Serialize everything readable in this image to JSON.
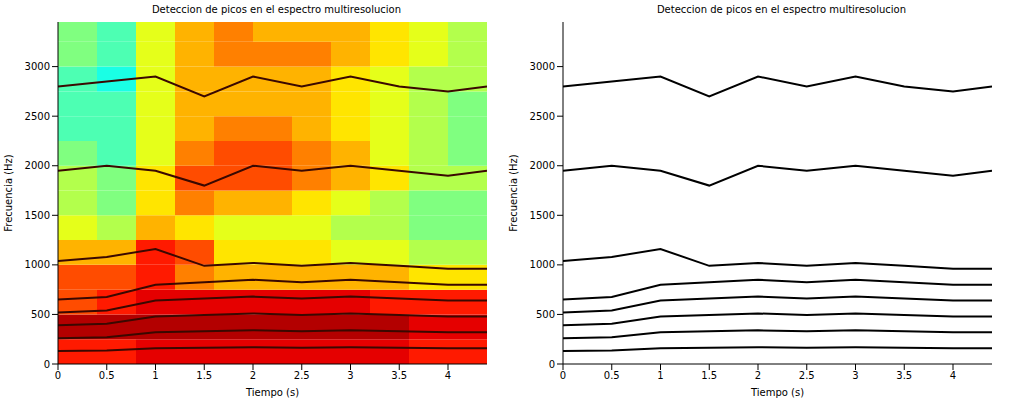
{
  "chart_data": [
    {
      "type": "heatmap",
      "title": "Deteccion de picos en el espectro multiresolucion",
      "xlabel": "Tiempo (s)",
      "ylabel": "Frecuencia (Hz)",
      "xlim": [
        0,
        4.4
      ],
      "ylim": [
        0,
        3450
      ],
      "xticks": [
        0,
        0.5,
        1,
        1.5,
        2,
        2.5,
        3,
        3.5,
        4
      ],
      "yticks": [
        0,
        500,
        1000,
        1500,
        2000,
        2500,
        3000
      ],
      "heatmap": {
        "x_bins": [
          0,
          0.4,
          0.8,
          1.2,
          1.6,
          2.0,
          2.4,
          2.8,
          3.2,
          3.6,
          4.0,
          4.4
        ],
        "y_bins": [
          0,
          250,
          500,
          750,
          1000,
          1250,
          1500,
          1750,
          2000,
          2250,
          2500,
          2750,
          3000,
          3250,
          3450
        ],
        "color_range": [
          0,
          1
        ],
        "cells": [
          [
            0.85,
            0.85,
            0.9,
            0.9,
            0.9,
            0.9,
            0.9,
            0.9,
            0.9,
            0.85,
            0.85
          ],
          [
            0.95,
            0.95,
            0.95,
            0.95,
            0.95,
            0.95,
            0.95,
            0.95,
            0.95,
            0.9,
            0.9
          ],
          [
            0.8,
            0.85,
            0.9,
            0.9,
            0.9,
            0.9,
            0.9,
            0.9,
            0.85,
            0.85,
            0.85
          ],
          [
            0.8,
            0.8,
            0.85,
            0.75,
            0.7,
            0.7,
            0.7,
            0.7,
            0.7,
            0.65,
            0.65
          ],
          [
            0.7,
            0.7,
            0.85,
            0.8,
            0.65,
            0.65,
            0.65,
            0.6,
            0.6,
            0.55,
            0.55
          ],
          [
            0.6,
            0.55,
            0.7,
            0.65,
            0.6,
            0.6,
            0.6,
            0.55,
            0.55,
            0.5,
            0.5
          ],
          [
            0.55,
            0.5,
            0.65,
            0.75,
            0.7,
            0.7,
            0.65,
            0.6,
            0.55,
            0.5,
            0.5
          ],
          [
            0.55,
            0.5,
            0.65,
            0.8,
            0.8,
            0.8,
            0.75,
            0.7,
            0.65,
            0.55,
            0.55
          ],
          [
            0.5,
            0.45,
            0.6,
            0.75,
            0.8,
            0.8,
            0.75,
            0.7,
            0.6,
            0.55,
            0.5
          ],
          [
            0.45,
            0.45,
            0.6,
            0.7,
            0.75,
            0.75,
            0.7,
            0.65,
            0.6,
            0.55,
            0.5
          ],
          [
            0.45,
            0.45,
            0.6,
            0.7,
            0.7,
            0.7,
            0.7,
            0.65,
            0.6,
            0.55,
            0.5
          ],
          [
            0.45,
            0.4,
            0.6,
            0.7,
            0.7,
            0.7,
            0.7,
            0.65,
            0.6,
            0.55,
            0.55
          ],
          [
            0.5,
            0.45,
            0.6,
            0.7,
            0.75,
            0.75,
            0.75,
            0.7,
            0.65,
            0.6,
            0.55
          ],
          [
            0.5,
            0.45,
            0.6,
            0.7,
            0.75,
            0.7,
            0.7,
            0.7,
            0.65,
            0.6,
            0.55
          ]
        ]
      },
      "x": [
        0,
        0.5,
        1,
        1.5,
        2,
        2.5,
        3,
        3.5,
        4,
        4.4
      ],
      "series": [
        {
          "color": "#3a0800",
          "values": [
            130,
            135,
            160,
            165,
            170,
            165,
            170,
            165,
            160,
            160
          ]
        },
        {
          "color": "#3a0800",
          "values": [
            260,
            270,
            320,
            330,
            340,
            330,
            340,
            330,
            320,
            320
          ]
        },
        {
          "color": "#3a0800",
          "values": [
            390,
            405,
            480,
            495,
            510,
            495,
            510,
            495,
            480,
            480
          ]
        },
        {
          "color": "#3a0800",
          "values": [
            520,
            540,
            640,
            660,
            680,
            660,
            680,
            660,
            640,
            640
          ]
        },
        {
          "color": "#3a0800",
          "values": [
            650,
            675,
            800,
            825,
            850,
            825,
            850,
            825,
            800,
            800
          ]
        },
        {
          "color": "#3a0800",
          "values": [
            1040,
            1080,
            1160,
            990,
            1020,
            990,
            1020,
            990,
            960,
            960
          ]
        },
        {
          "color": "#3a0800",
          "values": [
            1950,
            2000,
            1950,
            1800,
            2000,
            1950,
            2000,
            1950,
            1900,
            1950
          ]
        },
        {
          "color": "#3a0800",
          "values": [
            2800,
            2850,
            2900,
            2700,
            2900,
            2800,
            2900,
            2800,
            2750,
            2800
          ]
        }
      ]
    },
    {
      "type": "line",
      "title": "Deteccion de picos en el espectro multiresolucion",
      "xlabel": "Tiempo (s)",
      "ylabel": "Frecuencia (Hz)",
      "xlim": [
        0,
        4.4
      ],
      "ylim": [
        0,
        3450
      ],
      "xticks": [
        0,
        0.5,
        1,
        1.5,
        2,
        2.5,
        3,
        3.5,
        4
      ],
      "yticks": [
        0,
        500,
        1000,
        1500,
        2000,
        2500,
        3000
      ],
      "x": [
        0,
        0.5,
        1,
        1.5,
        2,
        2.5,
        3,
        3.5,
        4,
        4.4
      ],
      "series": [
        {
          "color": "#000000",
          "values": [
            130,
            135,
            160,
            165,
            170,
            165,
            170,
            165,
            160,
            160
          ]
        },
        {
          "color": "#000000",
          "values": [
            260,
            270,
            320,
            330,
            340,
            330,
            340,
            330,
            320,
            320
          ]
        },
        {
          "color": "#000000",
          "values": [
            390,
            405,
            480,
            495,
            510,
            495,
            510,
            495,
            480,
            480
          ]
        },
        {
          "color": "#000000",
          "values": [
            520,
            540,
            640,
            660,
            680,
            660,
            680,
            660,
            640,
            640
          ]
        },
        {
          "color": "#000000",
          "values": [
            650,
            675,
            800,
            825,
            850,
            825,
            850,
            825,
            800,
            800
          ]
        },
        {
          "color": "#000000",
          "values": [
            1040,
            1080,
            1160,
            990,
            1020,
            990,
            1020,
            990,
            960,
            960
          ]
        },
        {
          "color": "#000000",
          "values": [
            1950,
            2000,
            1950,
            1800,
            2000,
            1950,
            2000,
            1950,
            1900,
            1950
          ]
        },
        {
          "color": "#000000",
          "values": [
            2800,
            2850,
            2900,
            2700,
            2900,
            2800,
            2900,
            2800,
            2750,
            2800
          ]
        }
      ]
    }
  ]
}
